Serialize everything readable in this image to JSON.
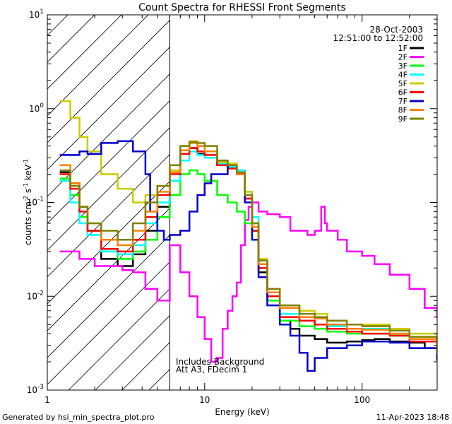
{
  "chart_data": {
    "type": "line",
    "title": "Count Spectra for RHESSI Front Segments",
    "xlabel": "Energy (keV)",
    "ylabel_main": "counts cm",
    "ylabel_exp1": "-2",
    "ylabel_mid": " s",
    "ylabel_exp2": "-1",
    "ylabel_end": " keV",
    "ylabel_exp3": "-1",
    "xscale": "log",
    "yscale": "log",
    "xlim": [
      1,
      300
    ],
    "ylim": [
      0.001,
      10
    ],
    "x_ticks": [
      {
        "value": 1,
        "label": "1"
      },
      {
        "value": 10,
        "label": "10"
      },
      {
        "value": 100,
        "label": "100"
      }
    ],
    "y_ticks": [
      {
        "exp": 1,
        "base": "10",
        "sup": "1"
      },
      {
        "exp": 0,
        "base": "10",
        "sup": "0"
      },
      {
        "exp": -1,
        "base": "10",
        "sup": "-1"
      },
      {
        "exp": -2,
        "base": "10",
        "sup": "-2"
      },
      {
        "exp": -3,
        "base": "10",
        "sup": "-3"
      }
    ],
    "date": "28-Oct-2003",
    "time_range": "12:51:00 to 12:52:00",
    "excluded_below_keV": 6,
    "annotation": [
      "Includes Background",
      "Att A3, FDecim 1"
    ],
    "series": [
      {
        "name": "1F",
        "color": "#000000",
        "points": [
          [
            1.2,
            0.21
          ],
          [
            1.4,
            0.16
          ],
          [
            1.6,
            0.09
          ],
          [
            1.8,
            0.05
          ],
          [
            2.2,
            0.025
          ],
          [
            2.8,
            0.021
          ],
          [
            3.5,
            0.028
          ],
          [
            4.2,
            0.05
          ],
          [
            5,
            0.09
          ],
          [
            6,
            0.17
          ],
          [
            7,
            0.33
          ],
          [
            8,
            0.38
          ],
          [
            9,
            0.33
          ],
          [
            10,
            0.3
          ],
          [
            12,
            0.25
          ],
          [
            14,
            0.24
          ],
          [
            16,
            0.2
          ],
          [
            18,
            0.11
          ],
          [
            20,
            0.05
          ],
          [
            22,
            0.018
          ],
          [
            25,
            0.009
          ],
          [
            30,
            0.0055
          ],
          [
            35,
            0.0045
          ],
          [
            40,
            0.0038
          ],
          [
            50,
            0.0035
          ],
          [
            60,
            0.0032
          ],
          [
            80,
            0.0033
          ],
          [
            100,
            0.0034
          ],
          [
            120,
            0.0035
          ],
          [
            150,
            0.0033
          ],
          [
            200,
            0.0032
          ],
          [
            250,
            0.0028
          ],
          [
            300,
            0.0021
          ]
        ]
      },
      {
        "name": "2F",
        "color": "#ff00ff",
        "points": [
          [
            1.2,
            0.03
          ],
          [
            1.6,
            0.025
          ],
          [
            2,
            0.021
          ],
          [
            3,
            0.019
          ],
          [
            3.5,
            0.018
          ],
          [
            4.2,
            0.012
          ],
          [
            5,
            0.009
          ],
          [
            6,
            0.035
          ],
          [
            7,
            0.018
          ],
          [
            8,
            0.01
          ],
          [
            9,
            0.006
          ],
          [
            10,
            0.0035
          ],
          [
            11,
            0.002
          ],
          [
            12,
            0.0022
          ],
          [
            13,
            0.0045
          ],
          [
            14,
            0.007
          ],
          [
            15,
            0.01
          ],
          [
            16,
            0.014
          ],
          [
            17,
            0.035
          ],
          [
            18,
            0.065
          ],
          [
            19,
            0.09
          ],
          [
            20,
            0.1
          ],
          [
            22,
            0.08
          ],
          [
            25,
            0.075
          ],
          [
            30,
            0.07
          ],
          [
            35,
            0.05
          ],
          [
            40,
            0.05
          ],
          [
            45,
            0.045
          ],
          [
            50,
            0.05
          ],
          [
            55,
            0.09
          ],
          [
            58,
            0.06
          ],
          [
            60,
            0.05
          ],
          [
            70,
            0.04
          ],
          [
            80,
            0.03
          ],
          [
            100,
            0.027
          ],
          [
            120,
            0.022
          ],
          [
            150,
            0.017
          ],
          [
            200,
            0.012
          ],
          [
            250,
            0.0075
          ],
          [
            300,
            0.006
          ]
        ]
      },
      {
        "name": "3F",
        "color": "#00ff00",
        "points": [
          [
            1.2,
            0.18
          ],
          [
            1.4,
            0.12
          ],
          [
            1.6,
            0.07
          ],
          [
            1.8,
            0.05
          ],
          [
            2.2,
            0.03
          ],
          [
            2.8,
            0.025
          ],
          [
            3.5,
            0.03
          ],
          [
            4.2,
            0.04
          ],
          [
            5,
            0.07
          ],
          [
            6,
            0.12
          ],
          [
            7,
            0.2
          ],
          [
            8,
            0.22
          ],
          [
            9,
            0.2
          ],
          [
            10,
            0.17
          ],
          [
            12,
            0.12
          ],
          [
            14,
            0.1
          ],
          [
            16,
            0.08
          ],
          [
            18,
            0.06
          ],
          [
            20,
            0.05
          ],
          [
            22,
            0.02
          ],
          [
            25,
            0.009
          ],
          [
            30,
            0.0055
          ],
          [
            40,
            0.0048
          ],
          [
            50,
            0.0045
          ],
          [
            60,
            0.0042
          ],
          [
            80,
            0.004
          ],
          [
            100,
            0.004
          ],
          [
            150,
            0.0038
          ],
          [
            200,
            0.0035
          ],
          [
            300,
            0.0024
          ]
        ]
      },
      {
        "name": "4F",
        "color": "#00ffff",
        "points": [
          [
            1.2,
            0.17
          ],
          [
            1.4,
            0.1
          ],
          [
            1.6,
            0.06
          ],
          [
            1.8,
            0.045
          ],
          [
            2.2,
            0.03
          ],
          [
            2.8,
            0.028
          ],
          [
            3.5,
            0.035
          ],
          [
            4.2,
            0.06
          ],
          [
            5,
            0.1
          ],
          [
            6,
            0.17
          ],
          [
            7,
            0.28
          ],
          [
            8,
            0.35
          ],
          [
            9,
            0.32
          ],
          [
            10,
            0.3
          ],
          [
            12,
            0.26
          ],
          [
            14,
            0.24
          ],
          [
            16,
            0.22
          ],
          [
            18,
            0.13
          ],
          [
            20,
            0.07
          ],
          [
            22,
            0.024
          ],
          [
            25,
            0.011
          ],
          [
            30,
            0.0065
          ],
          [
            40,
            0.0055
          ],
          [
            50,
            0.005
          ],
          [
            60,
            0.0048
          ],
          [
            80,
            0.0045
          ],
          [
            100,
            0.0045
          ],
          [
            150,
            0.004
          ],
          [
            200,
            0.0035
          ],
          [
            300,
            0.0024
          ]
        ]
      },
      {
        "name": "5F",
        "color": "#cccc00",
        "points": [
          [
            1.2,
            1.2
          ],
          [
            1.4,
            0.8
          ],
          [
            1.6,
            0.5
          ],
          [
            1.8,
            0.35
          ],
          [
            2.2,
            0.2
          ],
          [
            2.8,
            0.14
          ],
          [
            3.5,
            0.1
          ],
          [
            4.2,
            0.12
          ],
          [
            5,
            0.15
          ],
          [
            6,
            0.22
          ],
          [
            7,
            0.4
          ],
          [
            8,
            0.45
          ],
          [
            9,
            0.4
          ],
          [
            10,
            0.35
          ],
          [
            12,
            0.27
          ],
          [
            14,
            0.26
          ],
          [
            16,
            0.21
          ],
          [
            18,
            0.13
          ],
          [
            20,
            0.06
          ],
          [
            22,
            0.025
          ],
          [
            25,
            0.012
          ],
          [
            30,
            0.008
          ],
          [
            40,
            0.007
          ],
          [
            50,
            0.0065
          ],
          [
            60,
            0.0055
          ],
          [
            80,
            0.005
          ],
          [
            100,
            0.005
          ],
          [
            150,
            0.0045
          ],
          [
            200,
            0.004
          ],
          [
            300,
            0.0027
          ]
        ]
      },
      {
        "name": "6F",
        "color": "#ff0000",
        "points": [
          [
            1.2,
            0.2
          ],
          [
            1.4,
            0.14
          ],
          [
            1.6,
            0.08
          ],
          [
            1.8,
            0.05
          ],
          [
            2.2,
            0.032
          ],
          [
            2.8,
            0.03
          ],
          [
            3.5,
            0.04
          ],
          [
            4.2,
            0.07
          ],
          [
            5,
            0.12
          ],
          [
            6,
            0.2
          ],
          [
            7,
            0.33
          ],
          [
            8,
            0.38
          ],
          [
            9,
            0.35
          ],
          [
            10,
            0.32
          ],
          [
            12,
            0.25
          ],
          [
            14,
            0.23
          ],
          [
            16,
            0.2
          ],
          [
            18,
            0.11
          ],
          [
            20,
            0.05
          ],
          [
            22,
            0.02
          ],
          [
            25,
            0.01
          ],
          [
            30,
            0.006
          ],
          [
            40,
            0.0055
          ],
          [
            50,
            0.005
          ],
          [
            60,
            0.0045
          ],
          [
            80,
            0.0042
          ],
          [
            100,
            0.004
          ],
          [
            150,
            0.0038
          ],
          [
            200,
            0.0033
          ],
          [
            300,
            0.0023
          ]
        ]
      },
      {
        "name": "7F",
        "color": "#0000cc",
        "points": [
          [
            1.2,
            0.32
          ],
          [
            1.4,
            0.32
          ],
          [
            1.6,
            0.35
          ],
          [
            1.8,
            0.33
          ],
          [
            2.2,
            0.43
          ],
          [
            2.8,
            0.45
          ],
          [
            3.5,
            0.35
          ],
          [
            4.2,
            0.2
          ],
          [
            4.5,
            0.08
          ],
          [
            5,
            0.05
          ],
          [
            5.5,
            0.04
          ],
          [
            6,
            0.045
          ],
          [
            7,
            0.05
          ],
          [
            8,
            0.08
          ],
          [
            9,
            0.12
          ],
          [
            10,
            0.16
          ],
          [
            11,
            0.2
          ],
          [
            12,
            0.2
          ],
          [
            14,
            0.25
          ],
          [
            16,
            0.2
          ],
          [
            18,
            0.1
          ],
          [
            20,
            0.04
          ],
          [
            22,
            0.016
          ],
          [
            25,
            0.008
          ],
          [
            30,
            0.005
          ],
          [
            35,
            0.0038
          ],
          [
            40,
            0.0025
          ],
          [
            45,
            0.0016
          ],
          [
            50,
            0.0022
          ],
          [
            60,
            0.0028
          ],
          [
            80,
            0.003
          ],
          [
            100,
            0.0033
          ],
          [
            150,
            0.0032
          ],
          [
            200,
            0.0028
          ],
          [
            300,
            0.0021
          ]
        ]
      },
      {
        "name": "8F",
        "color": "#ff8000",
        "points": [
          [
            1.2,
            0.25
          ],
          [
            1.4,
            0.16
          ],
          [
            1.6,
            0.09
          ],
          [
            1.8,
            0.06
          ],
          [
            2.2,
            0.04
          ],
          [
            2.8,
            0.035
          ],
          [
            3.5,
            0.05
          ],
          [
            4.2,
            0.08
          ],
          [
            5,
            0.13
          ],
          [
            6,
            0.21
          ],
          [
            7,
            0.36
          ],
          [
            8,
            0.43
          ],
          [
            9,
            0.4
          ],
          [
            10,
            0.35
          ],
          [
            12,
            0.28
          ],
          [
            14,
            0.25
          ],
          [
            16,
            0.2
          ],
          [
            18,
            0.12
          ],
          [
            20,
            0.055
          ],
          [
            22,
            0.022
          ],
          [
            25,
            0.011
          ],
          [
            30,
            0.0075
          ],
          [
            40,
            0.006
          ],
          [
            50,
            0.0058
          ],
          [
            60,
            0.005
          ],
          [
            80,
            0.0045
          ],
          [
            100,
            0.0044
          ],
          [
            150,
            0.004
          ],
          [
            200,
            0.0035
          ],
          [
            300,
            0.0025
          ]
        ]
      },
      {
        "name": "9F",
        "color": "#808000",
        "points": [
          [
            1.2,
            0.22
          ],
          [
            1.4,
            0.15
          ],
          [
            1.6,
            0.09
          ],
          [
            1.8,
            0.06
          ],
          [
            2.2,
            0.05
          ],
          [
            2.8,
            0.04
          ],
          [
            3.5,
            0.06
          ],
          [
            4.2,
            0.1
          ],
          [
            5,
            0.15
          ],
          [
            6,
            0.25
          ],
          [
            7,
            0.4
          ],
          [
            8,
            0.44
          ],
          [
            9,
            0.43
          ],
          [
            10,
            0.4
          ],
          [
            12,
            0.28
          ],
          [
            14,
            0.25
          ],
          [
            16,
            0.21
          ],
          [
            18,
            0.12
          ],
          [
            20,
            0.06
          ],
          [
            22,
            0.024
          ],
          [
            25,
            0.012
          ],
          [
            30,
            0.008
          ],
          [
            40,
            0.0065
          ],
          [
            50,
            0.006
          ],
          [
            60,
            0.0055
          ],
          [
            80,
            0.005
          ],
          [
            100,
            0.0048
          ],
          [
            150,
            0.0043
          ],
          [
            200,
            0.0037
          ],
          [
            300,
            0.0026
          ]
        ]
      }
    ]
  },
  "footer": {
    "left": "Generated by hsi_min_spectra_plot.pro",
    "right": "11-Apr-2023 18:48"
  }
}
